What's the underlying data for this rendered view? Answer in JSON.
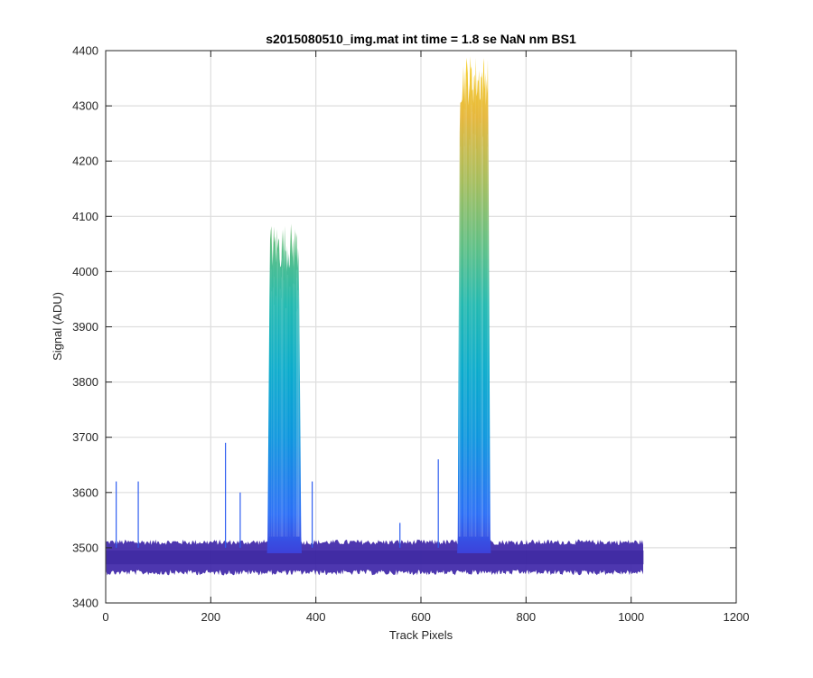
{
  "chart_data": {
    "type": "line",
    "title": "s2015080510_img.mat int time = 1.8 se  NaN nm BS1",
    "xlabel": "Track Pixels",
    "ylabel": "Signal (ADU)",
    "xlim": [
      0,
      1200
    ],
    "ylim": [
      3400,
      4400
    ],
    "xticks": [
      0,
      200,
      400,
      600,
      800,
      1000,
      1200
    ],
    "yticks": [
      3400,
      3500,
      3600,
      3700,
      3800,
      3900,
      4000,
      4100,
      4200,
      4300,
      4400
    ],
    "grid": true,
    "colormap": "parula",
    "colors": {
      "low": "#3e26a8",
      "mid": "#12b2c7",
      "high": "#f9d52c"
    },
    "baseline": {
      "x_range": [
        1,
        1024
      ],
      "band_low": 3460,
      "band_high": 3505,
      "peak_noise": 3515,
      "min_noise": 3450
    },
    "peaks": [
      {
        "x_start": 308,
        "x_end": 372,
        "top": 4040,
        "max": 4090
      },
      {
        "x_start": 670,
        "x_end": 732,
        "top": 4340,
        "max": 4395
      }
    ],
    "spikes": [
      {
        "x": 20,
        "y": 3620
      },
      {
        "x": 62,
        "y": 3620
      },
      {
        "x": 228,
        "y": 3690
      },
      {
        "x": 256,
        "y": 3600
      },
      {
        "x": 393,
        "y": 3620
      },
      {
        "x": 560,
        "y": 3545
      },
      {
        "x": 633,
        "y": 3660
      }
    ]
  }
}
